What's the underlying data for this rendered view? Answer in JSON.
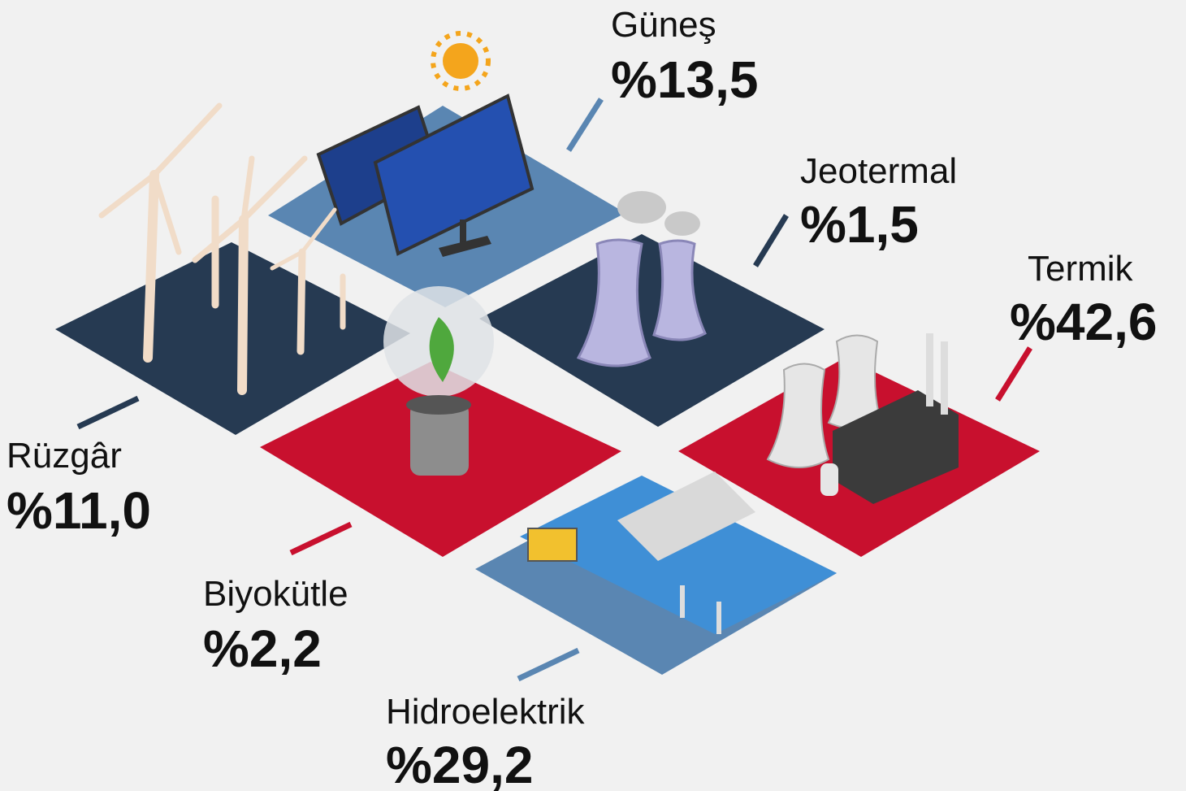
{
  "items": [
    {
      "label": "Güneş",
      "share": "%13,5"
    },
    {
      "label": "Jeotermal",
      "share": "%1,5"
    },
    {
      "label": "Termik",
      "share": "%42,6"
    },
    {
      "label": "Rüzgâr",
      "share": "%11,0"
    },
    {
      "label": "Biyokütle",
      "share": "%2,2"
    },
    {
      "label": "Hidroelektrik",
      "share": "%29,2"
    }
  ]
}
